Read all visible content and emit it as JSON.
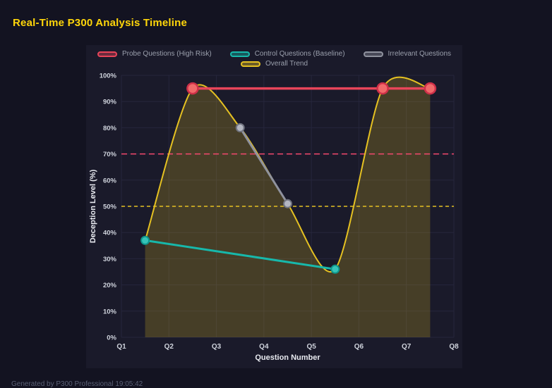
{
  "page": {
    "title": "Real-Time P300 Analysis Timeline",
    "footer": "Generated by P300 Professional   19:05:42"
  },
  "colors": {
    "background": "#131321",
    "panel": "#1a1a2a",
    "grid": "#26263c",
    "tick_text": "#cfd3dc",
    "axis_title": "#e8eaf0",
    "legend_text": "#9ba0ad",
    "title": "#ffd60a",
    "footer_text": "#5a6075"
  },
  "chart_data": {
    "type": "line",
    "title": "Real-Time P300 Analysis Timeline",
    "xlabel": "Question Number",
    "ylabel": "Deception Level (%)",
    "xlim": [
      1,
      8
    ],
    "ylim": [
      0,
      100
    ],
    "grid": true,
    "legend_position": "top",
    "legend_rows": [
      [
        0,
        1,
        2
      ],
      [
        3
      ]
    ],
    "x_ticks": [
      {
        "value": 1,
        "label": "Q1"
      },
      {
        "value": 2,
        "label": "Q2"
      },
      {
        "value": 3,
        "label": "Q3"
      },
      {
        "value": 4,
        "label": "Q4"
      },
      {
        "value": 5,
        "label": "Q5"
      },
      {
        "value": 6,
        "label": "Q6"
      },
      {
        "value": 7,
        "label": "Q7"
      },
      {
        "value": 8,
        "label": "Q8"
      }
    ],
    "y_ticks": [
      {
        "value": 0,
        "label": "0%"
      },
      {
        "value": 10,
        "label": "10%"
      },
      {
        "value": 20,
        "label": "20%"
      },
      {
        "value": 30,
        "label": "30%"
      },
      {
        "value": 40,
        "label": "40%"
      },
      {
        "value": 50,
        "label": "50%"
      },
      {
        "value": 60,
        "label": "60%"
      },
      {
        "value": 70,
        "label": "70%"
      },
      {
        "value": 80,
        "label": "80%"
      },
      {
        "value": 90,
        "label": "90%"
      },
      {
        "value": 100,
        "label": "100%"
      }
    ],
    "thresholds": [
      {
        "value": 70,
        "color": "#f5486d",
        "dash": "8 5",
        "width": 1.5
      },
      {
        "value": 50,
        "color": "#e5c122",
        "dash": "5 4",
        "width": 1.5
      }
    ],
    "series": [
      {
        "name": "Probe Questions (High Risk)",
        "color": "#e8455a",
        "x": [
          2.5,
          6.5,
          7.5
        ],
        "values": [
          95,
          95,
          95
        ],
        "line_width": 3.5,
        "smooth": false,
        "point_radius": 7.5,
        "point_fill": "#f06a6a",
        "point_stroke": "#cf3049",
        "point_stroke_width": 2.5
      },
      {
        "name": "Control Questions (Baseline)",
        "color": "#17b8ab",
        "x": [
          1.5,
          5.5
        ],
        "values": [
          37,
          26
        ],
        "line_width": 3,
        "smooth": false,
        "point_radius": 5.5,
        "point_fill": "#36c4b8",
        "point_stroke": "#0e968c",
        "point_stroke_width": 2
      },
      {
        "name": "Irrelevant Questions",
        "color": "#8f929e",
        "x": [
          3.5,
          4.5
        ],
        "values": [
          80,
          51
        ],
        "line_width": 3,
        "smooth": false,
        "point_radius": 5.5,
        "point_fill": "#b4b7c1",
        "point_stroke": "#717480",
        "point_stroke_width": 2
      },
      {
        "name": "Overall Trend",
        "color": "#e5c122",
        "x": [
          1.5,
          2.5,
          3.5,
          4.5,
          5.5,
          6.5,
          7.5
        ],
        "values": [
          37,
          95,
          80,
          51,
          26,
          95,
          95
        ],
        "line_width": 2,
        "smooth": true,
        "point_radius": 0,
        "area_fill": "rgba(229,193,34,0.22)"
      }
    ]
  }
}
